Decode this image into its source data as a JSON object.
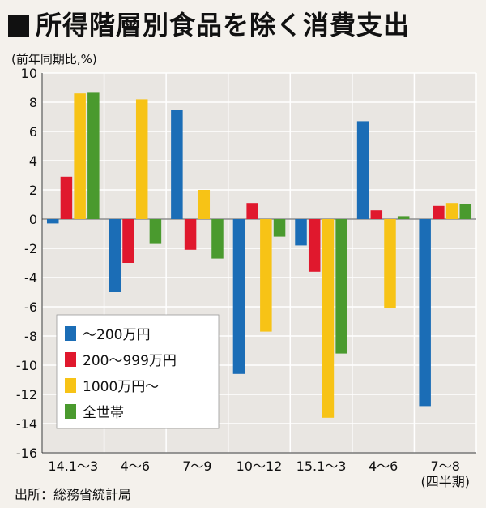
{
  "title": "所得階層別食品を除く消費支出",
  "unit_label": "(前年同期比,%)",
  "source": "出所：総務省統計局",
  "chart_data": {
    "type": "bar",
    "title": "所得階層別食品を除く消費支出",
    "ylabel": "(前年同期比,%)",
    "ylim": [
      -16,
      10
    ],
    "yticks": [
      10,
      8,
      6,
      4,
      2,
      0,
      -2,
      -4,
      -6,
      -8,
      -10,
      -12,
      -14,
      -16
    ],
    "grid": true,
    "legend_position": "bottom-left",
    "categories": [
      "14.1～3",
      "4～6",
      "7～9",
      "10～12",
      "15.1～3",
      "4～6",
      "7～8"
    ],
    "category_sublabels": [
      "",
      "",
      "",
      "",
      "",
      "",
      "(四半期)"
    ],
    "series": [
      {
        "name": "～200万円",
        "color": "#1b6db6",
        "values": [
          -0.3,
          -5.0,
          7.5,
          -10.6,
          -1.8,
          6.7,
          -12.8
        ]
      },
      {
        "name": "200～999万円",
        "color": "#e0182d",
        "values": [
          2.9,
          -3.0,
          -2.1,
          1.1,
          -3.6,
          0.6,
          0.9
        ]
      },
      {
        "name": "1000万円～",
        "color": "#f7c316",
        "values": [
          8.6,
          8.2,
          2.0,
          -7.7,
          -13.6,
          -6.1,
          1.1
        ]
      },
      {
        "name": "全世帯",
        "color": "#4a9a2e",
        "values": [
          8.7,
          -1.7,
          -2.7,
          -1.2,
          -9.2,
          0.2,
          1.0
        ]
      }
    ]
  }
}
